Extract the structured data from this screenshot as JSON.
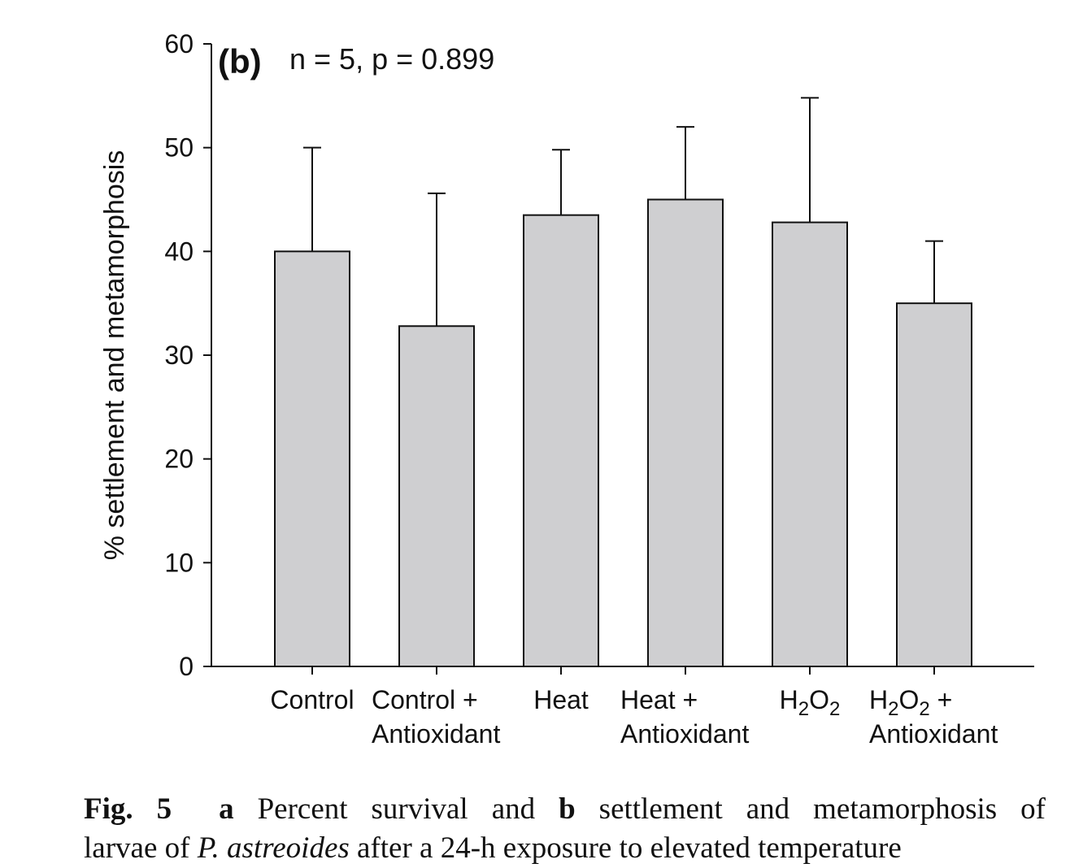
{
  "chart_data": {
    "type": "bar",
    "panel_label": "(b)",
    "annotation": "n = 5, p = 0.899",
    "ylabel": "% settlement and metamorphosis",
    "xlabel": "",
    "ylim": [
      0,
      60
    ],
    "yticks": [
      0,
      10,
      20,
      30,
      40,
      50,
      60
    ],
    "grid": false,
    "categories": [
      {
        "line1": "Control",
        "line2": ""
      },
      {
        "line1": "Control +",
        "line2": "Antioxidant"
      },
      {
        "line1": "Heat",
        "line2": ""
      },
      {
        "line1": "Heat +",
        "line2": "Antioxidant"
      },
      {
        "line1": "H2O2",
        "line2": ""
      },
      {
        "line1": "H2O2 +",
        "line2": "Antioxidant"
      }
    ],
    "values": [
      40.0,
      32.8,
      43.5,
      45.0,
      42.8,
      35.0
    ],
    "error_upper": [
      50.0,
      45.6,
      49.8,
      52.0,
      54.8,
      41.0
    ],
    "colors": {
      "bar_fill": "#cfcfd1",
      "bar_stroke": "#111111"
    }
  },
  "caption": {
    "fig_label": "Fig. 5",
    "part_a": "a",
    "text_a": "Percent survival and",
    "part_b": "b",
    "text_b": "settlement and metamorphosis of",
    "line2_pre": "larvae of",
    "species": "P. astreoides",
    "line2_post": "after a 24-h exposure to elevated temperature"
  }
}
